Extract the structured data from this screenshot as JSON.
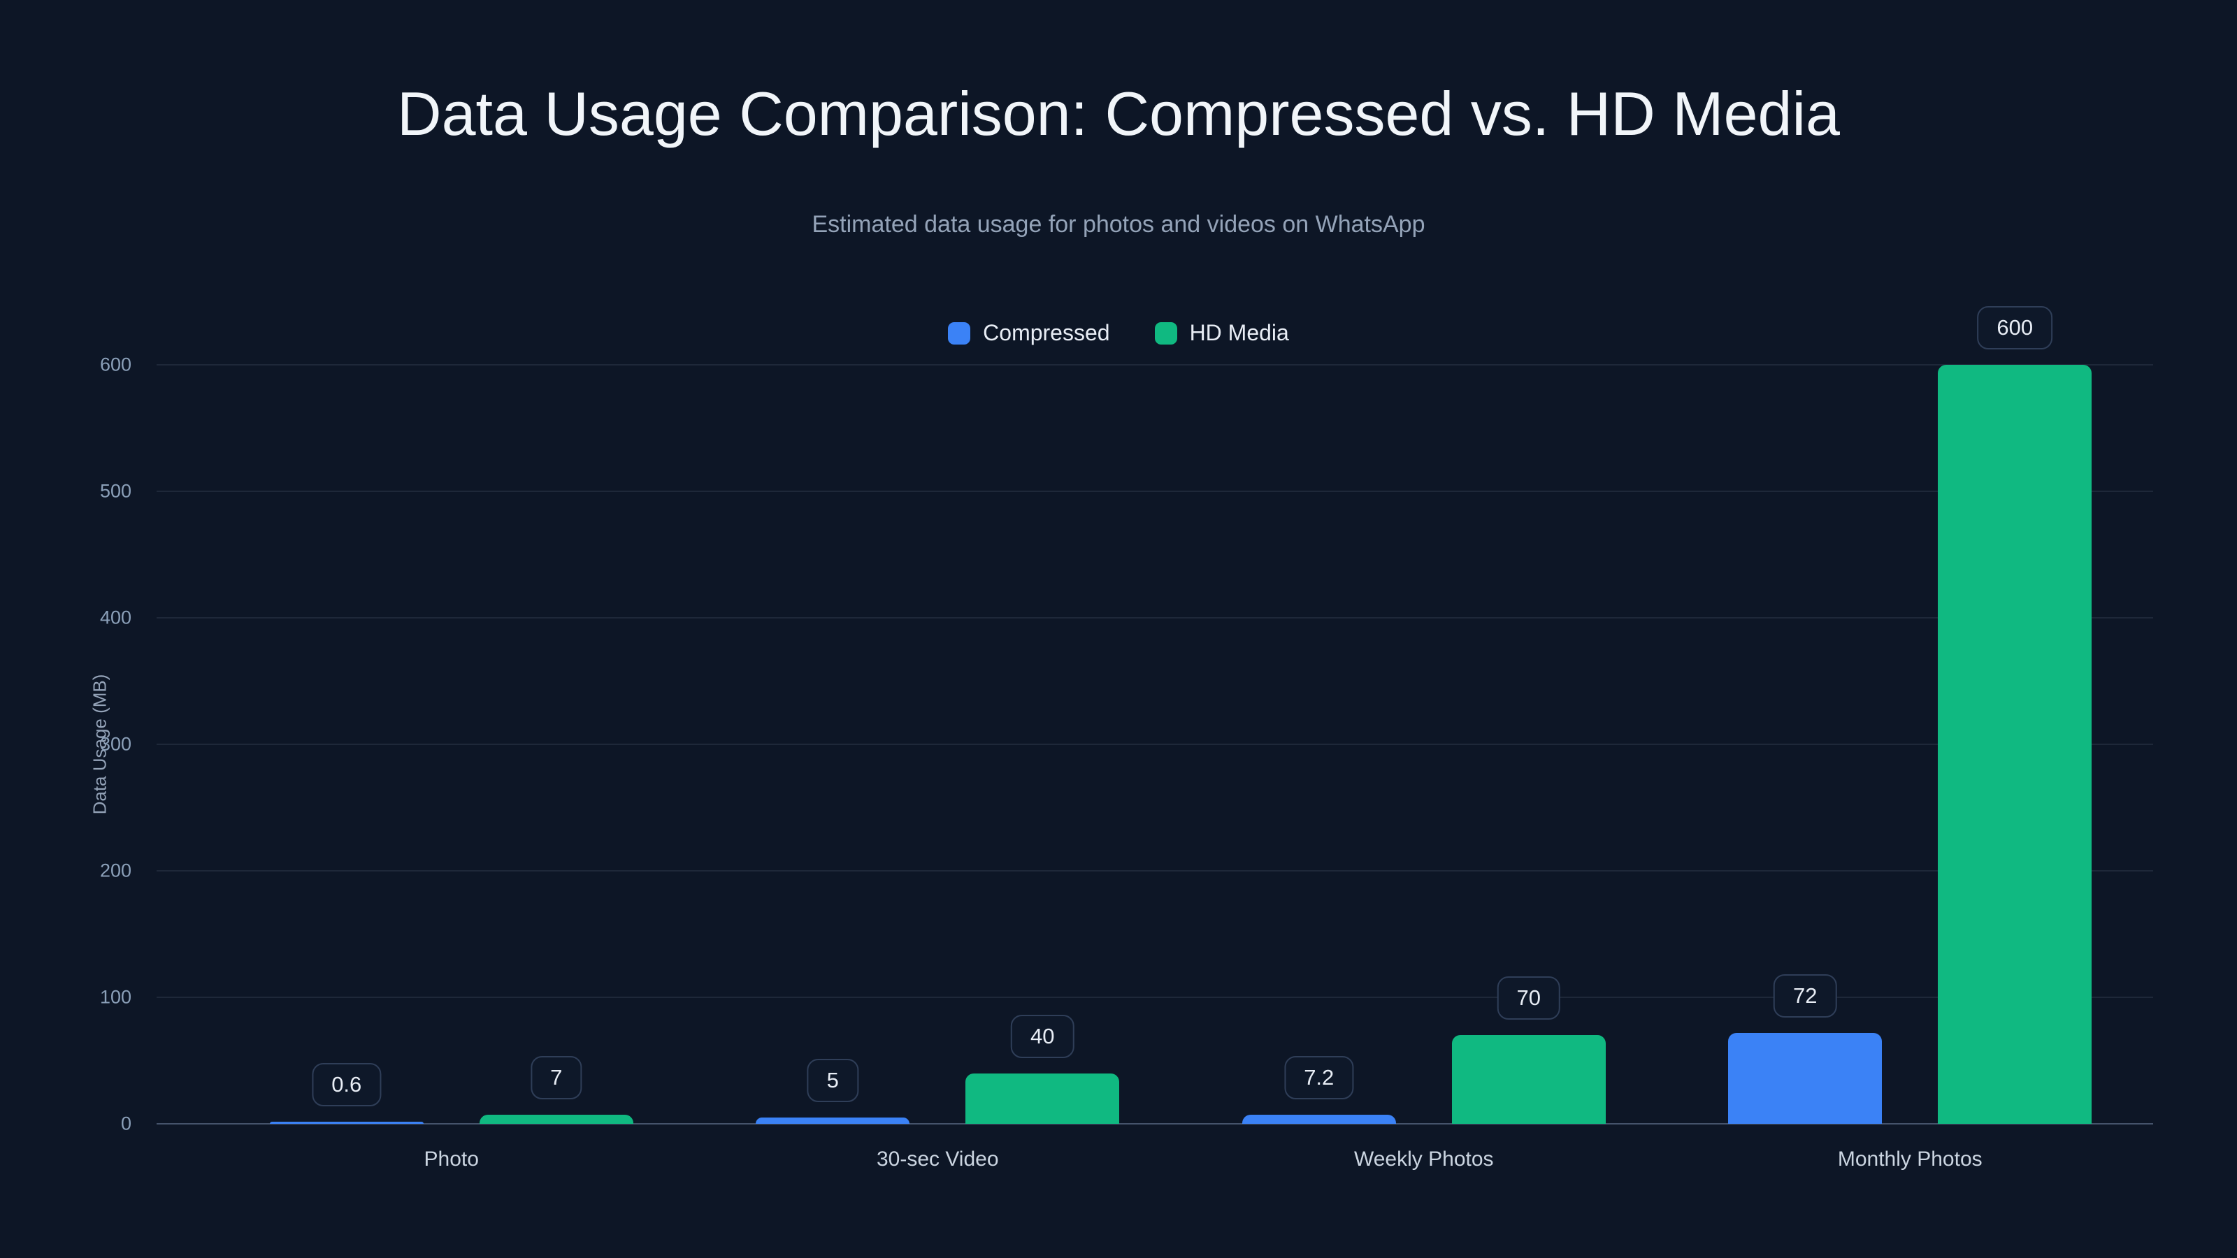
{
  "page": {
    "background": "#0d1626"
  },
  "chart_data": {
    "type": "bar",
    "title": "Data Usage Comparison: Compressed vs. HD Media",
    "subtitle": "Estimated data usage for photos and videos on WhatsApp",
    "ylabel": "Data Usage (MB)",
    "xlabel": "",
    "ylim": [
      0,
      600
    ],
    "yticks": [
      0,
      100,
      200,
      300,
      400,
      500,
      600
    ],
    "grid": true,
    "legend_position": "top",
    "categories": [
      "Photo",
      "30-sec Video",
      "Weekly Photos",
      "Monthly Photos"
    ],
    "series": [
      {
        "name": "Compressed",
        "color": "#3b82f6",
        "values": [
          0.6,
          5,
          7.2,
          72
        ]
      },
      {
        "name": "HD Media",
        "color": "#10b981",
        "values": [
          7,
          40,
          70,
          600
        ]
      }
    ],
    "value_labels": {
      "Compressed": [
        "0.6",
        "5",
        "7.2",
        "72"
      ],
      "HD Media": [
        "7",
        "40",
        "70",
        "600"
      ]
    }
  }
}
